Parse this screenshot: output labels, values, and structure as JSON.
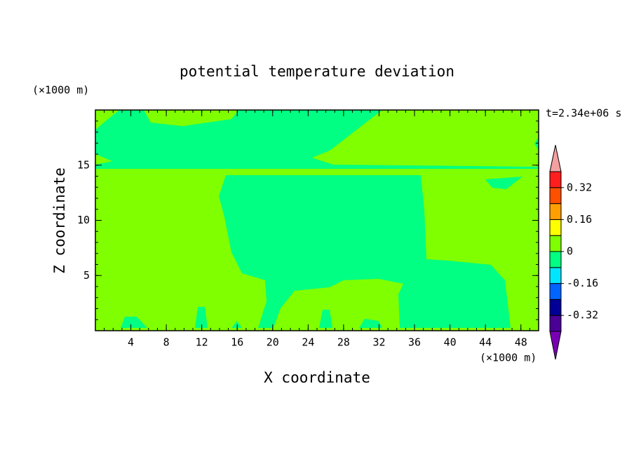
{
  "chart_data": {
    "type": "contour",
    "title": "potential temperature deviation",
    "x_label": "X coordinate",
    "y_label": "Z coordinate",
    "x_unit": "(×1000 m)",
    "y_unit": "(×1000 m)",
    "time_label": "t=2.34e+06 s",
    "xlim": [
      0,
      50
    ],
    "xticks": [
      4,
      8,
      12,
      16,
      20,
      24,
      28,
      32,
      36,
      40,
      44,
      48
    ],
    "ylim": [
      0,
      20
    ],
    "yticks": [
      5,
      10,
      15
    ],
    "clim": [
      -0.4,
      0.4
    ],
    "cticks": [
      -0.32,
      -0.16,
      0,
      0.16,
      0.32
    ],
    "colors": [
      "#4b0096",
      "#000096",
      "#0064ff",
      "#00e6ff",
      "#00ff82",
      "#80ff00",
      "#ffff00",
      "#ffa000",
      "#ff5000",
      "#ff1e1e"
    ],
    "under_color": "#7800b4",
    "over_color": "#f5a0a0"
  }
}
